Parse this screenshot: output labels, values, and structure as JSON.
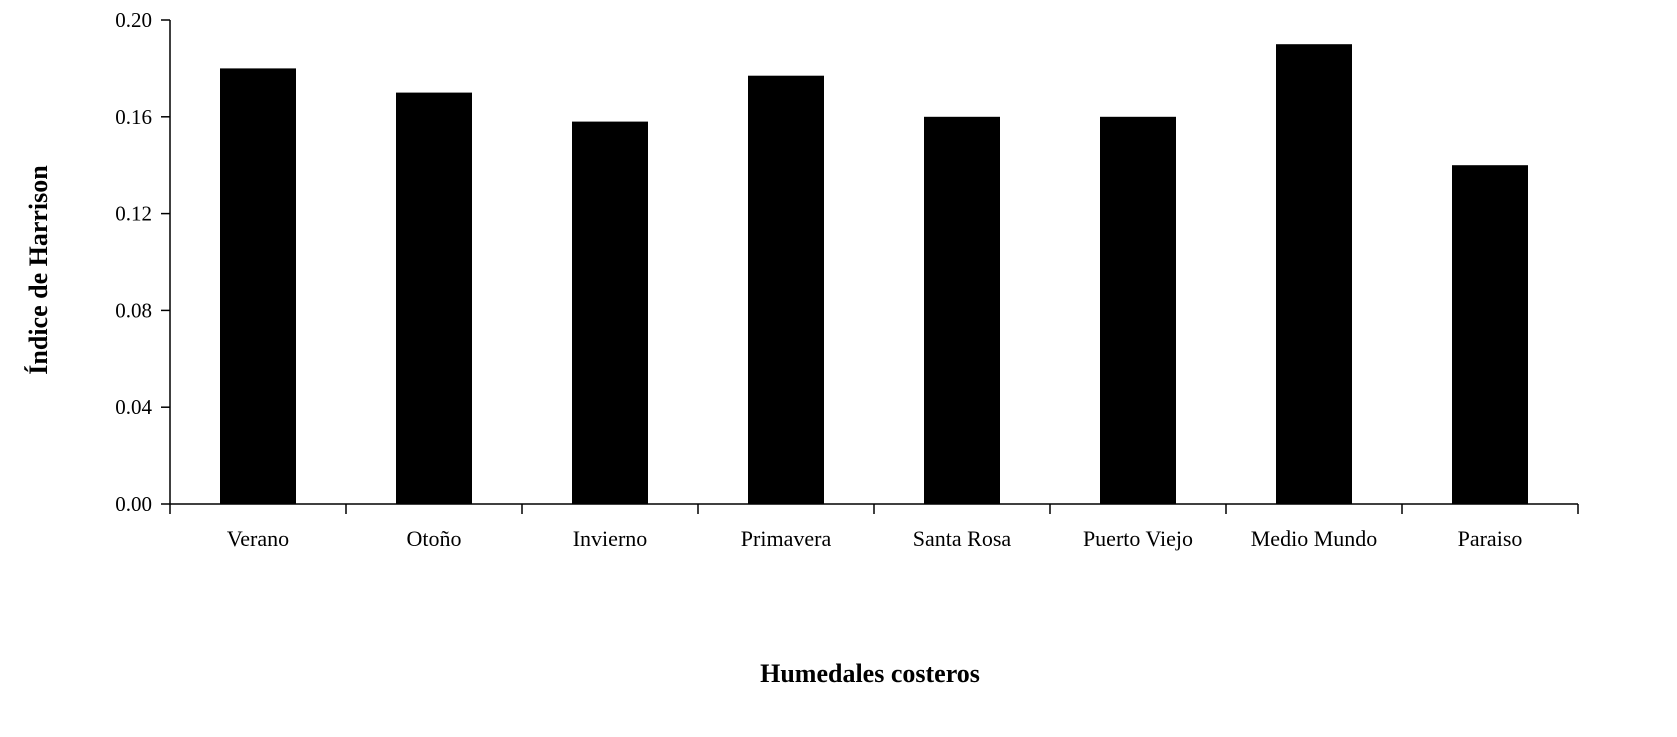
{
  "chart_data": {
    "type": "bar",
    "title": "",
    "xlabel": "Humedales costeros",
    "ylabel": "Índice de Harrison",
    "categories": [
      "Verano",
      "Otoño",
      "Invierno",
      "Primavera",
      "Santa Rosa",
      "Puerto Viejo",
      "Medio Mundo",
      "Paraiso"
    ],
    "values": [
      0.18,
      0.17,
      0.158,
      0.177,
      0.16,
      0.16,
      0.19,
      0.14
    ],
    "ylim": [
      0,
      0.2
    ],
    "yticks": [
      "0.00",
      "0.04",
      "0.08",
      "0.12",
      "0.16",
      "0.20"
    ],
    "ytick_values": [
      0,
      0.04,
      0.08,
      0.12,
      0.16,
      0.2
    ],
    "grid": false,
    "legend": "none",
    "bar_color": "#000000"
  }
}
